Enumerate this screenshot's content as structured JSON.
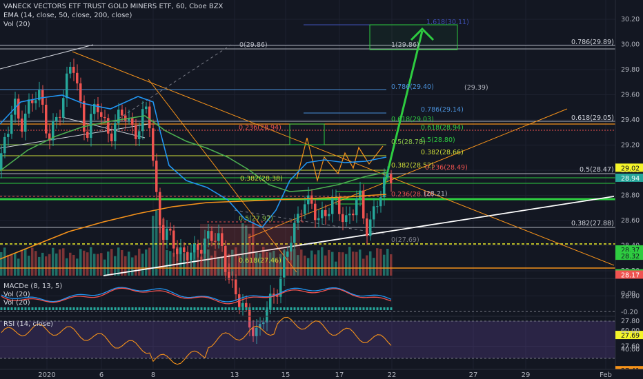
{
  "header": {
    "title": "VANECK VECTORS ETF TRUST GOLD MINERS ETF, 60, Cboe BZX",
    "ema": "EMA (14, close, 50, close, 200, close)",
    "vol": "Vol (20)"
  },
  "macd_pane": {
    "title": "MACDe (8, 13, 5)",
    "vol1": "Vol (20)",
    "vol2": "Vol (20)",
    "axis_labels": [
      "0.00",
      "-0.20"
    ]
  },
  "rsi_pane": {
    "title": "RSI (14, close)",
    "axis_labels": [
      "60.00",
      "40.00"
    ]
  },
  "price_axis": {
    "ticks": [
      "30.20",
      "30.00",
      "29.80",
      "29.60",
      "29.40",
      "29.20",
      "29.00",
      "28.80",
      "28.60",
      "28.40",
      "28.20",
      "28.00",
      "27.80",
      "27.60",
      "27.40"
    ],
    "tags": [
      {
        "text": "29.02",
        "color": "#f5f52a",
        "fg": "#131722"
      },
      {
        "text": "28.94",
        "color": "#26a69a",
        "fg": "#ffffff"
      },
      {
        "text": "28.37",
        "color": "#2ecc40",
        "fg": "#131722"
      },
      {
        "text": "28.32",
        "color": "#2ecc40",
        "fg": "#131722"
      },
      {
        "text": "28.18",
        "color": "#2ecc40",
        "fg": "#131722"
      },
      {
        "text": "28.17",
        "color": "#ef5350",
        "fg": "#ffffff"
      },
      {
        "text": "27.69",
        "color": "#f5f52a",
        "fg": "#131722"
      },
      {
        "text": "27.41",
        "color": "#f7931a",
        "fg": "#131722"
      }
    ]
  },
  "time_axis": {
    "labels": [
      "2020",
      "6",
      "8",
      "13",
      "15",
      "17",
      "22",
      "27",
      "29",
      "Feb"
    ]
  },
  "fib_labels": [
    "1.618(30.11)",
    "0(29.86)",
    "1(29.86)",
    "0.786(29.89)",
    "0.786(29.40)",
    "(29.39)",
    "0.786(29.14)",
    "0.618(29.05)",
    "0.618(29.03)",
    "0.236(28.94)",
    "0.618(28.94)",
    "0.5(28.80)",
    "0.5(28.78)",
    "0.382(28.66)",
    "0.382(28.52)",
    "0.236(28.49)",
    "0.5(28.47)",
    "0.382(28.38)",
    "0.236(28.10)",
    "(28.21)",
    "0.5(27.92)",
    "0.382(27.88)",
    "0(27.69)",
    "0.618(27.46)"
  ],
  "colors": {
    "bg": "#131722",
    "up": "#26a69a",
    "down": "#ef5350",
    "ema14": "#2196f3",
    "ema50": "#4caf50",
    "ema200": "#f7931a",
    "target_arrow": "#2ecc40"
  }
}
